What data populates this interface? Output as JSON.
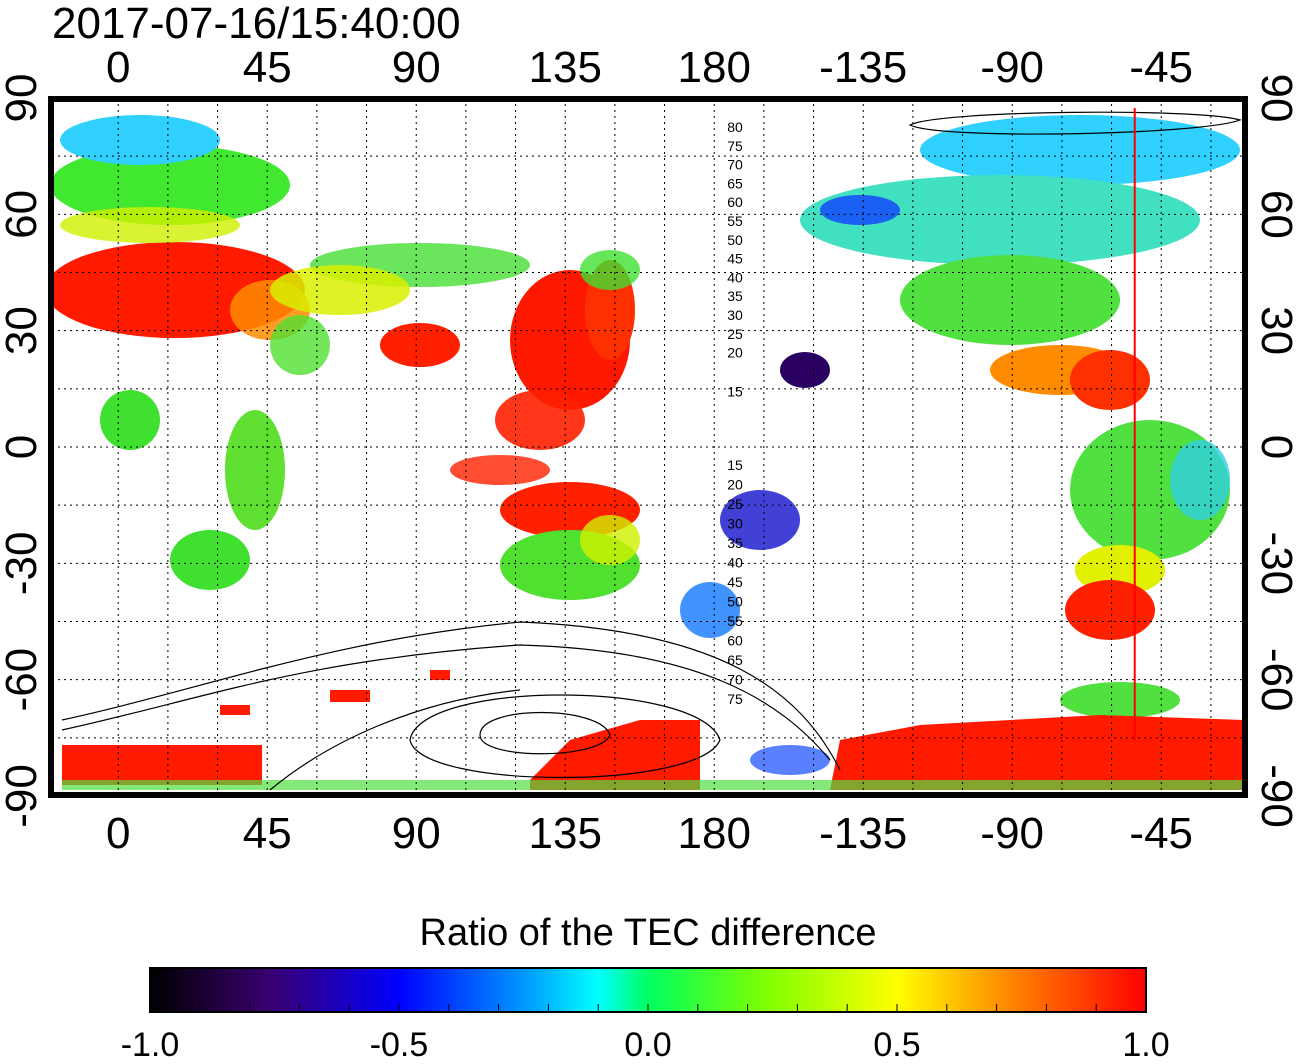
{
  "title": "2017-07-16/15:40:00",
  "colorbar": {
    "title": "Ratio of the TEC difference",
    "tick_labels": [
      "-1.0",
      "-0.5",
      "0.0",
      "0.5",
      "1.0"
    ],
    "range": [
      -1.0,
      1.0
    ],
    "colormap": [
      "#000000",
      "#3a0070",
      "#0000ff",
      "#00ffff",
      "#00ff00",
      "#ffff00",
      "#ff0000"
    ]
  },
  "axes": {
    "x_top_labels": [
      "0",
      "45",
      "90",
      "135",
      "180",
      "-135",
      "-90",
      "-45"
    ],
    "x_bottom_labels": [
      "0",
      "45",
      "90",
      "135",
      "180",
      "-135",
      "-90",
      "-45"
    ],
    "y_left_labels": [
      "90",
      "60",
      "30",
      "0",
      "-30",
      "-60",
      "-90"
    ],
    "y_right_labels": [
      "90",
      "60",
      "30",
      "0",
      "-30",
      "-60",
      "-90"
    ],
    "longitude_range": [
      -20,
      340
    ],
    "latitude_range": [
      -90,
      90
    ]
  },
  "contour_labels_north": [
    "80",
    "75",
    "70",
    "65",
    "60",
    "55",
    "50",
    "45",
    "40",
    "35",
    "30",
    "25",
    "20",
    "15"
  ],
  "contour_labels_south": [
    "15",
    "20",
    "25",
    "30",
    "35",
    "40",
    "45",
    "50",
    "55",
    "60",
    "65",
    "70",
    "75"
  ],
  "marker_line": {
    "longitude": -53,
    "color": "#ff0000"
  },
  "palette": {
    "red": "#ff0000",
    "orange": "#ff8000",
    "yellow": "#e8f000",
    "green": "#30e830",
    "cyan": "#20e0ff",
    "blue": "#1060ff",
    "purple": "#300090",
    "black": "#100010"
  }
}
